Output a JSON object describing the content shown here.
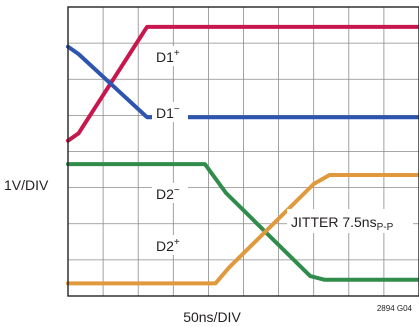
{
  "chart_data": {
    "type": "line",
    "xlabel": "50ns/DIV",
    "ylabel": "1V/DIV",
    "figure_id": "2894 G04",
    "grid": true,
    "x_divisions": 10,
    "y_divisions": 8,
    "xlim": [
      0,
      10
    ],
    "ylim": [
      0,
      8
    ],
    "colors": {
      "D1+": "#c8174e",
      "D1-": "#2d55b0",
      "D2-": "#2f8c4a",
      "D2+": "#e0993c",
      "grid": "#8a8a8a",
      "frame": "#222222"
    },
    "series": [
      {
        "name": "D1+",
        "label": "D1",
        "sup": "+",
        "x": [
          0,
          0.3,
          2.25,
          10
        ],
        "y": [
          4.3,
          4.5,
          7.45,
          7.45
        ]
      },
      {
        "name": "D1−",
        "label": "D1",
        "sup": "−",
        "x": [
          0,
          0.3,
          2.25,
          10
        ],
        "y": [
          6.9,
          6.7,
          4.95,
          4.95
        ]
      },
      {
        "name": "D2−",
        "label": "D2",
        "sup": "−",
        "x": [
          0,
          3.9,
          4.5,
          6.9,
          7.3,
          10
        ],
        "y": [
          3.65,
          3.65,
          2.85,
          0.55,
          0.45,
          0.45
        ]
      },
      {
        "name": "D2+",
        "label": "D2",
        "sup": "+",
        "x": [
          0,
          4.2,
          4.6,
          7.0,
          7.45,
          10
        ],
        "y": [
          0.35,
          0.35,
          0.8,
          3.1,
          3.35,
          3.35
        ]
      }
    ],
    "annotations": [
      {
        "main": "JITTER 7.5ns",
        "sub": "P-P"
      }
    ]
  }
}
